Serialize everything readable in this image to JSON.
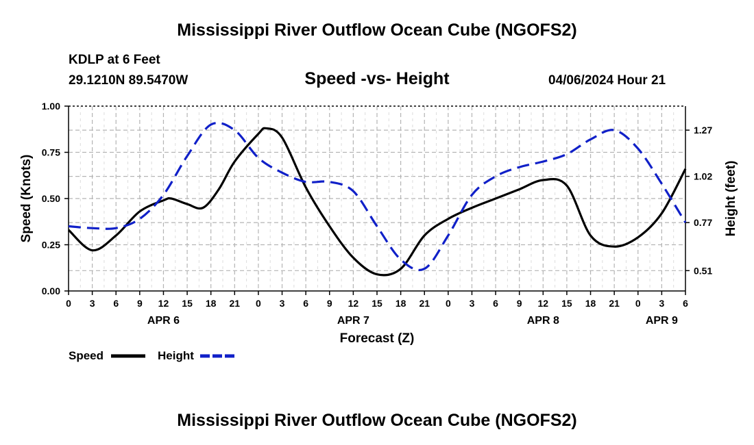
{
  "header": {
    "title": "Mississippi River Outflow Ocean Cube (NGOFS2)",
    "station": "KDLP at 6 Feet",
    "coords": "29.1210N  89.5470W",
    "subtitle": "Speed -vs- Height",
    "datetime": "04/06/2024 Hour 21"
  },
  "footer": {
    "title": "Mississippi River Outflow Ocean Cube (NGOFS2)"
  },
  "legend": {
    "speed_label": "Speed",
    "height_label": "Height"
  },
  "colors": {
    "speed": "#000000",
    "height": "#1020c8",
    "grid": "#b4b4b4"
  },
  "chart_data": {
    "type": "line",
    "title": "Speed -vs- Height",
    "xlabel": "Forecast (Z)",
    "ylabel": "Speed (Knots)",
    "y2label": "Height (feet)",
    "xlim": [
      0,
      78
    ],
    "ylim": [
      0,
      1.0
    ],
    "y2lim": [
      0.4,
      1.4
    ],
    "x_tick_values": [
      0,
      3,
      6,
      9,
      12,
      15,
      18,
      21,
      24,
      27,
      30,
      33,
      36,
      39,
      42,
      45,
      48,
      51,
      54,
      57,
      60,
      63,
      66,
      69,
      72,
      75,
      78
    ],
    "x_tick_labels": [
      "0",
      "3",
      "6",
      "9",
      "12",
      "15",
      "18",
      "21",
      "0",
      "3",
      "6",
      "9",
      "12",
      "15",
      "18",
      "21",
      "0",
      "3",
      "6",
      "9",
      "12",
      "15",
      "18",
      "21",
      "0",
      "3",
      "6"
    ],
    "date_labels": [
      {
        "label": "APR 6",
        "x": 12
      },
      {
        "label": "APR 7",
        "x": 36
      },
      {
        "label": "APR 8",
        "x": 60
      },
      {
        "label": "APR 9",
        "x": 75
      }
    ],
    "y_ticks": [
      0,
      0.25,
      0.5,
      0.75,
      1.0
    ],
    "y_tick_labels": [
      "0.00",
      "0.25",
      "0.50",
      "0.75",
      "1.00"
    ],
    "y2_ticks": [
      0.51,
      0.77,
      1.02,
      1.27
    ],
    "y2_tick_labels": [
      "0.51",
      "0.77",
      "1.02",
      "1.27"
    ],
    "series": [
      {
        "name": "Speed",
        "axis": "left",
        "dash": "solid",
        "x": [
          0,
          3,
          6,
          9,
          12,
          13,
          15,
          17,
          19,
          21,
          24,
          25,
          27,
          30,
          33,
          36,
          39,
          42,
          45,
          48,
          51,
          54,
          57,
          60,
          63,
          66,
          69,
          72,
          75,
          78
        ],
        "values": [
          0.33,
          0.22,
          0.3,
          0.43,
          0.49,
          0.5,
          0.47,
          0.45,
          0.55,
          0.7,
          0.85,
          0.88,
          0.83,
          0.56,
          0.35,
          0.18,
          0.09,
          0.12,
          0.3,
          0.39,
          0.45,
          0.5,
          0.55,
          0.6,
          0.57,
          0.3,
          0.24,
          0.29,
          0.42,
          0.66
        ]
      },
      {
        "name": "Height",
        "axis": "right",
        "dash": "dashed",
        "x": [
          0,
          3,
          6,
          9,
          12,
          15,
          18,
          21,
          24,
          27,
          30,
          33,
          36,
          39,
          42,
          45,
          48,
          51,
          54,
          57,
          60,
          63,
          66,
          69,
          72,
          75,
          78
        ],
        "values": [
          0.75,
          0.74,
          0.74,
          0.79,
          0.92,
          1.13,
          1.3,
          1.27,
          1.12,
          1.04,
          0.99,
          0.99,
          0.94,
          0.75,
          0.57,
          0.52,
          0.7,
          0.92,
          1.02,
          1.07,
          1.1,
          1.14,
          1.22,
          1.27,
          1.17,
          0.98,
          0.77
        ]
      }
    ]
  }
}
